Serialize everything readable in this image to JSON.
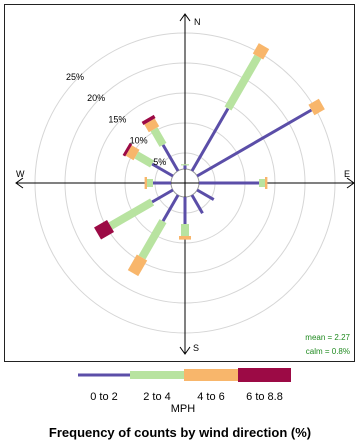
{
  "chart_data": {
    "type": "wind-rose",
    "title": "Frequency of counts by wind direction (%)",
    "legend_title": "MPH",
    "directions": [
      "N",
      "E",
      "S",
      "W"
    ],
    "ring_levels": [
      5,
      10,
      15,
      20,
      25
    ],
    "ring_labels": [
      "5%",
      "10%",
      "15%",
      "20%",
      "25%"
    ],
    "max_ring": 25,
    "stats": {
      "mean": "mean = 2.27",
      "calm": "calm = 0.8%"
    },
    "bins": [
      {
        "label": "0 to 2",
        "color": "#5b4ea8"
      },
      {
        "label": "2 to 4",
        "color": "#b8e3a0"
      },
      {
        "label": "4 to 6",
        "color": "#f8b66b"
      },
      {
        "label": "6 to 8.8",
        "color": "#9c0a45"
      }
    ],
    "sectors": [
      {
        "angle": 0,
        "values": [
          0.6,
          0.2,
          0.0,
          0.0
        ]
      },
      {
        "angle": 30,
        "values": [
          12.0,
          10.0,
          2.0,
          0.0
        ]
      },
      {
        "angle": 60,
        "values": [
          22.0,
          0.0,
          2.0,
          0.0
        ]
      },
      {
        "angle": 90,
        "values": [
          10.0,
          1.0,
          0.4,
          0.0
        ]
      },
      {
        "angle": 120,
        "values": [
          3.2,
          0.0,
          0.0,
          0.0
        ]
      },
      {
        "angle": 150,
        "values": [
          3.5,
          0.0,
          0.0,
          0.0
        ]
      },
      {
        "angle": 180,
        "values": [
          4.5,
          2.0,
          0.6,
          0.0
        ]
      },
      {
        "angle": 210,
        "values": [
          5.0,
          7.0,
          3.0,
          0.0
        ]
      },
      {
        "angle": 240,
        "values": [
          4.0,
          8.0,
          0.0,
          2.5
        ]
      },
      {
        "angle": 270,
        "values": [
          3.0,
          1.0,
          0.4,
          0.0
        ]
      },
      {
        "angle": 300,
        "values": [
          4.0,
          3.0,
          1.5,
          0.5
        ]
      },
      {
        "angle": 330,
        "values": [
          5.0,
          3.0,
          1.5,
          0.6
        ]
      }
    ]
  }
}
